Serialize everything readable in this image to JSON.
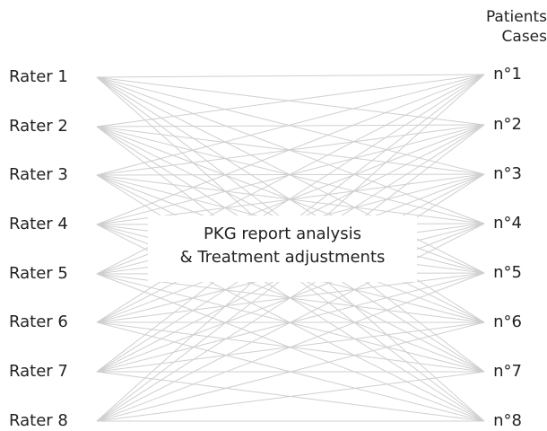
{
  "raters": [
    "Rater 1",
    "Rater 2",
    "Rater 3",
    "Rater 4",
    "Rater 5",
    "Rater 6",
    "Rater 7",
    "Rater 8"
  ],
  "cases": [
    "n°1",
    "n°2",
    "n°3",
    "n°4",
    "n°5",
    "n°6",
    "n°7",
    "n°8"
  ],
  "cases_header": {
    "line1": "Patients",
    "line2": "Cases"
  },
  "center": {
    "line1": "PKG report analysis",
    "line2": "& Treatment adjustments"
  },
  "colors": {
    "connector": "#cfcfcf",
    "text": "#222222"
  }
}
